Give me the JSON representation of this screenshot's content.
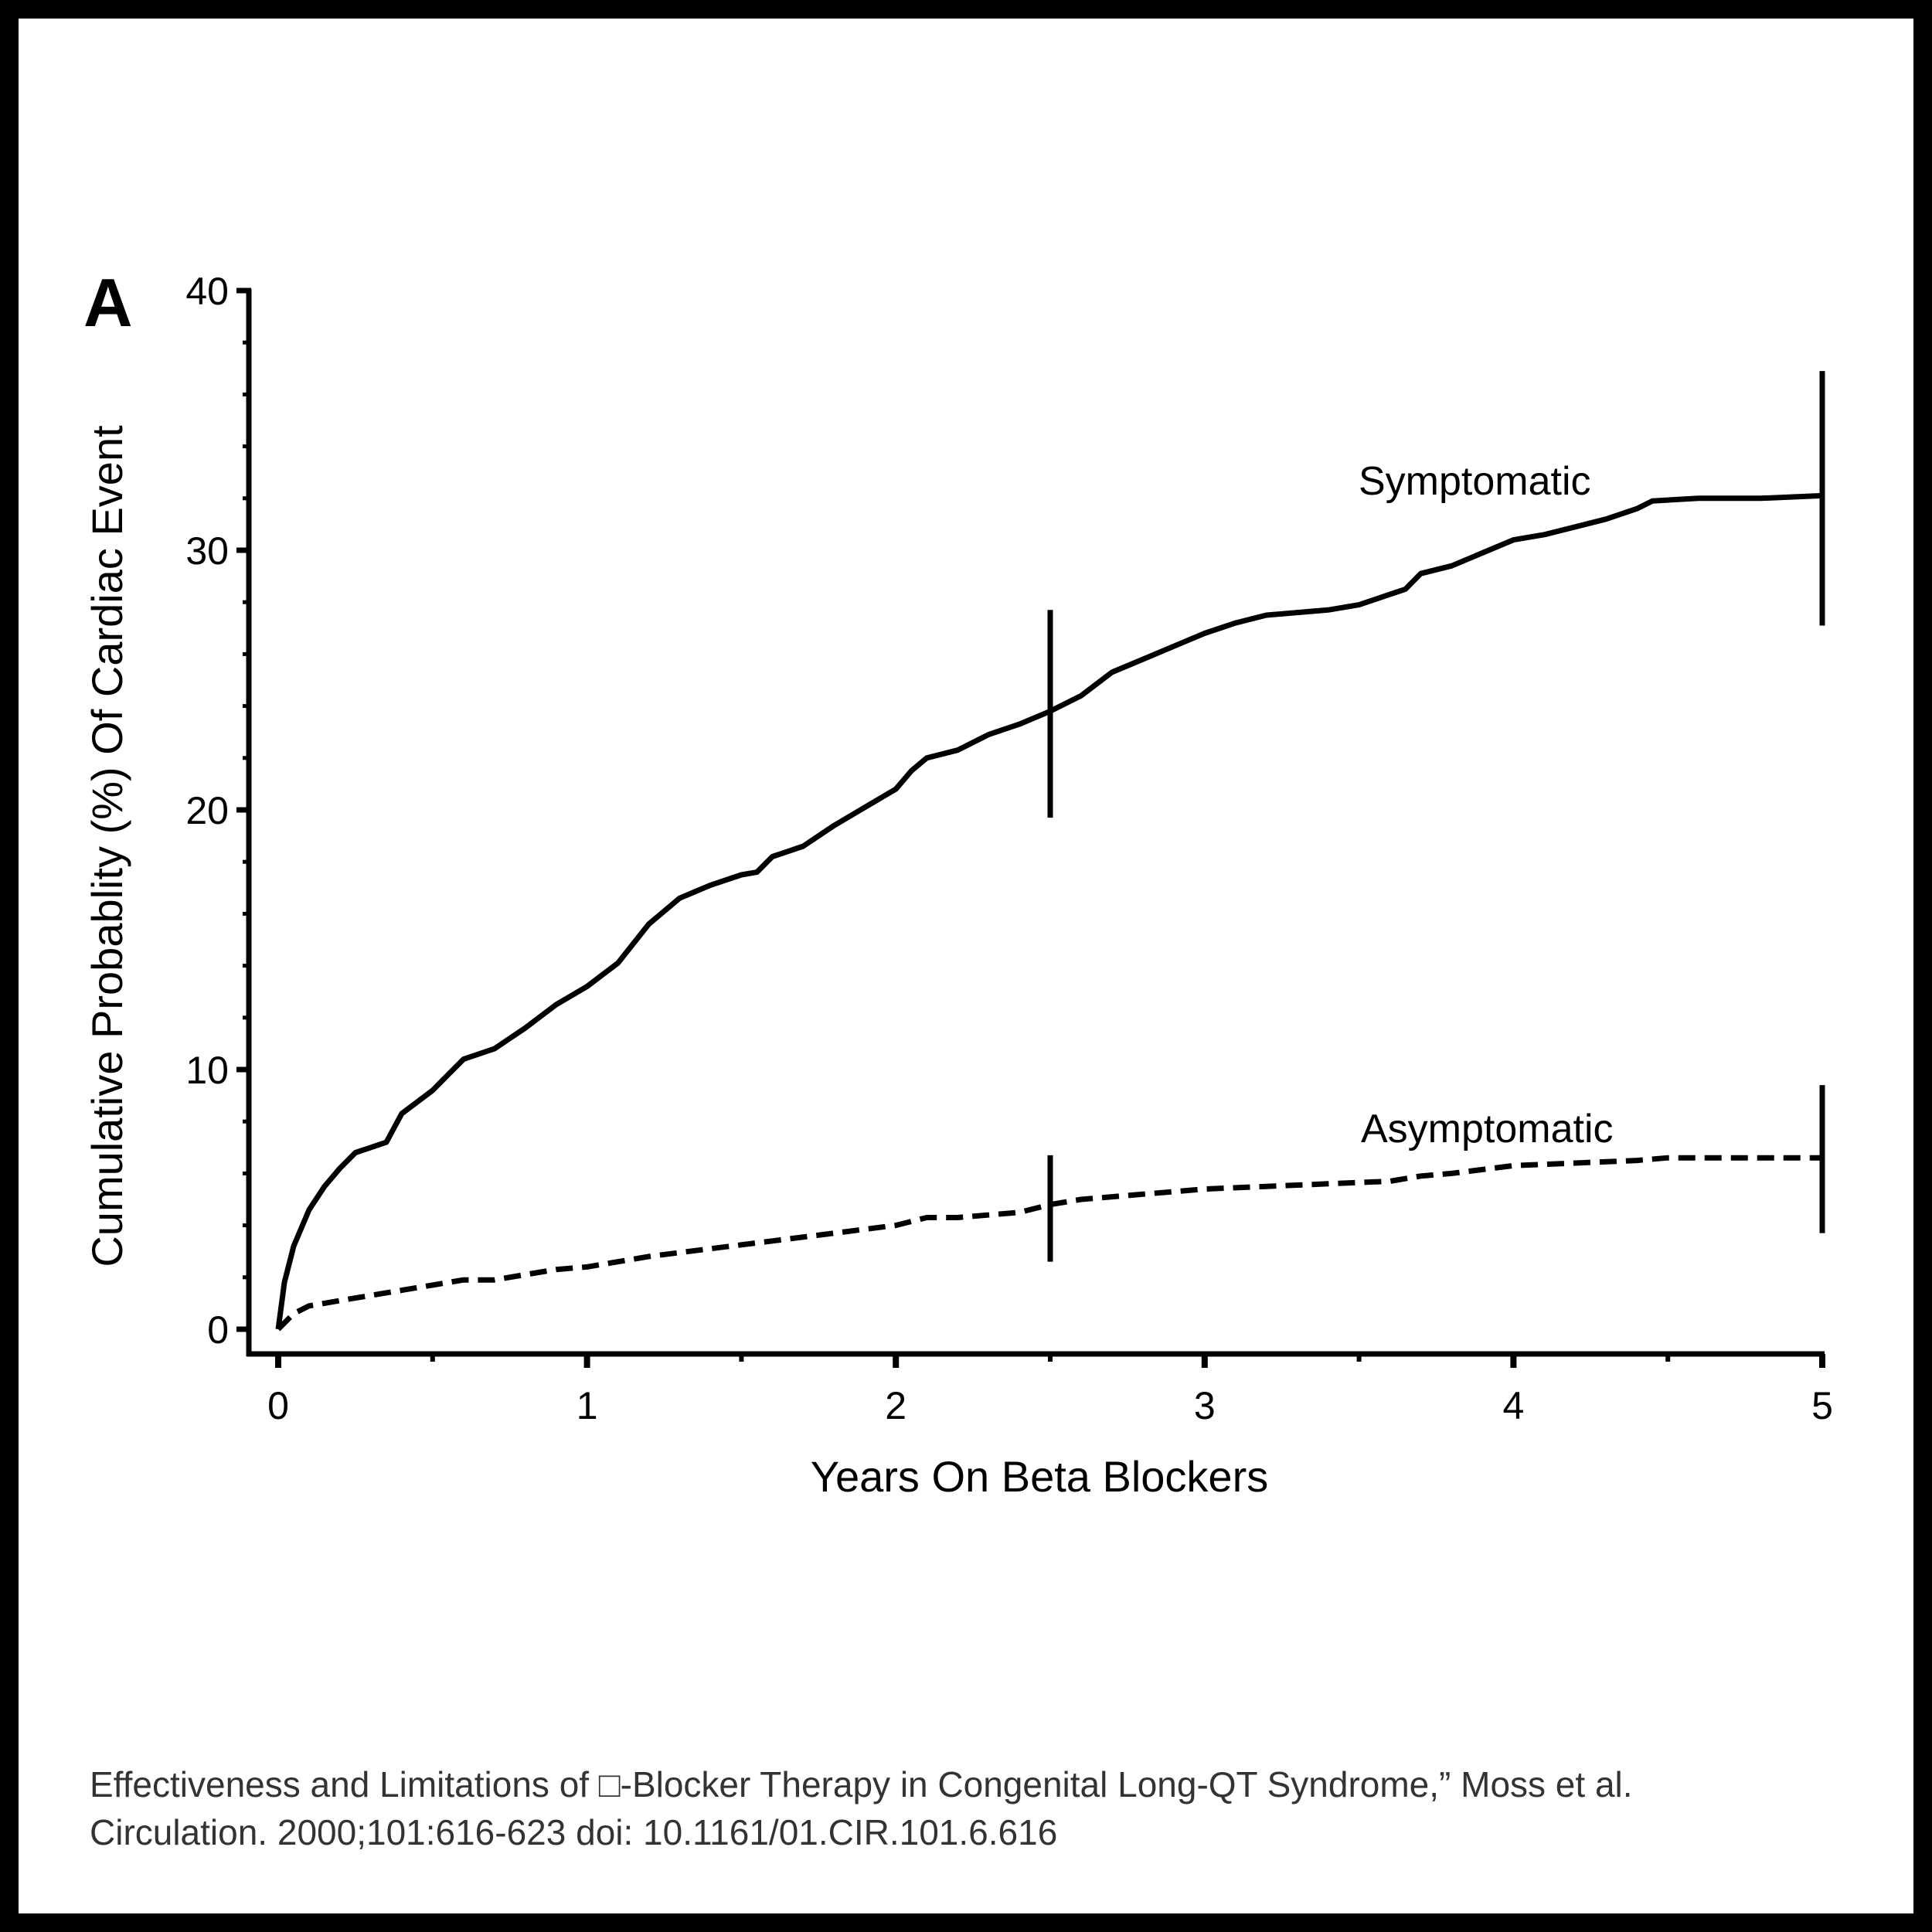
{
  "figure": {
    "panel_label": "A",
    "caption_line1": "Effectiveness and Limitations of □-Blocker Therapy in Congenital Long-QT Syndrome,” Moss et al.",
    "caption_line2": "Circulation. 2000;101:616-623 doi: 10.1161/01.CIR.101.6.616",
    "border_color": "#000000",
    "background_color": "#ffffff",
    "caption_color": "#333333"
  },
  "chart_data": {
    "type": "line",
    "title": "",
    "xlabel": "Years On Beta Blockers",
    "ylabel": "Cumulative Probablity (%) Of Cardiac Event",
    "xlim": [
      0,
      5
    ],
    "ylim": [
      0,
      40
    ],
    "x_ticks": [
      0,
      1,
      2,
      3,
      4,
      5
    ],
    "x_tick_labels": [
      "0",
      "1",
      "2",
      "3",
      "4",
      "5"
    ],
    "x_minor_ticks": [
      0.5,
      1.5,
      2.5,
      3.5,
      4.5
    ],
    "y_ticks": [
      0,
      10,
      20,
      30,
      40
    ],
    "y_tick_labels": [
      "0",
      "10",
      "20",
      "30",
      "40"
    ],
    "y_minor_ticks": [
      2,
      4,
      6,
      8,
      12,
      14,
      16,
      18,
      22,
      24,
      26,
      28,
      32,
      34,
      36,
      38
    ],
    "grid": false,
    "legend": "inline labels",
    "series": [
      {
        "name": "Symptomatic",
        "style": "solid",
        "label_position": {
          "x": 3.5,
          "y": 32.4
        },
        "x": [
          0,
          0.02,
          0.05,
          0.1,
          0.15,
          0.2,
          0.25,
          0.3,
          0.35,
          0.4,
          0.5,
          0.55,
          0.6,
          0.7,
          0.8,
          0.9,
          1.0,
          1.1,
          1.2,
          1.3,
          1.4,
          1.5,
          1.55,
          1.6,
          1.7,
          1.8,
          1.9,
          2.0,
          2.05,
          2.1,
          2.2,
          2.3,
          2.4,
          2.5,
          2.6,
          2.7,
          2.8,
          2.9,
          3.0,
          3.1,
          3.2,
          3.3,
          3.4,
          3.5,
          3.6,
          3.65,
          3.7,
          3.8,
          3.9,
          4.0,
          4.1,
          4.2,
          4.3,
          4.4,
          4.45,
          4.6,
          4.8,
          5.0
        ],
        "values": [
          0,
          1.8,
          3.2,
          4.6,
          5.5,
          6.2,
          6.8,
          7.0,
          7.2,
          8.3,
          9.2,
          9.8,
          10.4,
          10.8,
          11.6,
          12.5,
          13.2,
          14.1,
          15.6,
          16.6,
          17.1,
          17.5,
          17.6,
          18.2,
          18.6,
          19.4,
          20.1,
          20.8,
          21.5,
          22.0,
          22.3,
          22.9,
          23.3,
          23.8,
          24.4,
          25.3,
          25.8,
          26.3,
          26.8,
          27.2,
          27.5,
          27.6,
          27.7,
          27.9,
          28.3,
          28.5,
          29.1,
          29.4,
          29.9,
          30.4,
          30.6,
          30.9,
          31.2,
          31.6,
          31.9,
          32.0,
          32.0,
          32.1
        ],
        "error_bars": [
          {
            "x": 2.5,
            "center": 23.8,
            "lower": 19.7,
            "upper": 27.7
          },
          {
            "x": 5.0,
            "center": 32.1,
            "lower": 27.1,
            "upper": 36.9
          }
        ]
      },
      {
        "name": "Asymptomatic",
        "style": "dashed",
        "label_position": {
          "x": 3.5,
          "y": 7.2
        },
        "x": [
          0,
          0.05,
          0.1,
          0.2,
          0.3,
          0.4,
          0.5,
          0.6,
          0.7,
          0.8,
          0.9,
          1.0,
          1.2,
          1.4,
          1.6,
          1.8,
          2.0,
          2.1,
          2.2,
          2.4,
          2.5,
          2.6,
          2.8,
          3.0,
          3.2,
          3.4,
          3.6,
          3.7,
          3.8,
          4.0,
          4.2,
          4.4,
          4.5,
          4.8,
          5.0
        ],
        "values": [
          0,
          0.6,
          0.9,
          1.1,
          1.3,
          1.5,
          1.7,
          1.9,
          1.9,
          2.1,
          2.3,
          2.4,
          2.8,
          3.1,
          3.4,
          3.7,
          4.0,
          4.3,
          4.3,
          4.5,
          4.8,
          5.0,
          5.2,
          5.4,
          5.5,
          5.6,
          5.7,
          5.9,
          6.0,
          6.3,
          6.4,
          6.5,
          6.6,
          6.6,
          6.6
        ],
        "error_bars": [
          {
            "x": 2.5,
            "center": 4.8,
            "lower": 2.6,
            "upper": 6.7
          },
          {
            "x": 5.0,
            "center": 6.6,
            "lower": 3.7,
            "upper": 9.4
          }
        ]
      }
    ]
  }
}
